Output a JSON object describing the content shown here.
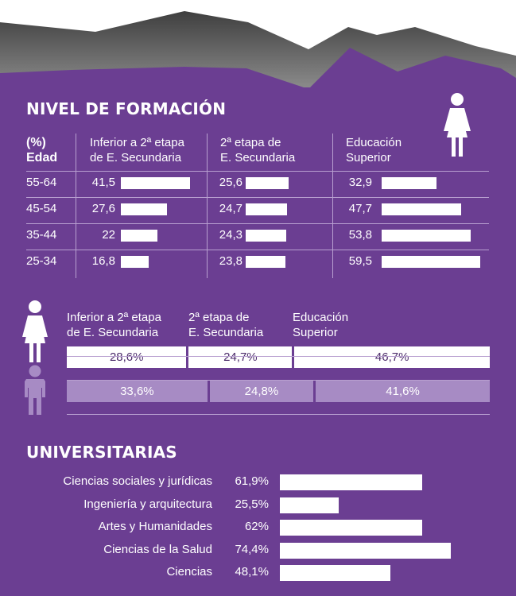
{
  "chart_data": [
    {
      "type": "bar",
      "title": "NIVEL DE FORMACIÓN",
      "header_col0": [
        "(%)",
        "Edad"
      ],
      "groups": [
        [
          "Inferior a 2ª etapa",
          "de E. Secundaria"
        ],
        [
          "2ª etapa de",
          "E. Secundaria"
        ],
        [
          "Educación",
          "Superior"
        ]
      ],
      "categories": [
        "55-64",
        "45-54",
        "35-44",
        "25-34"
      ],
      "series": [
        {
          "name": "Inferior a 2ª etapa de E. Secundaria",
          "values": [
            "41,5",
            "27,6",
            "22",
            "16,8"
          ]
        },
        {
          "name": "2ª etapa de E. Secundaria",
          "values": [
            "25,6",
            "24,7",
            "24,3",
            "23,8"
          ]
        },
        {
          "name": "Educación Superior",
          "values": [
            "32,9",
            "47,7",
            "53,8",
            "59,5"
          ]
        }
      ]
    },
    {
      "type": "bar",
      "stacked": true,
      "categories": [
        [
          "Inferior a 2ª etapa",
          "de E. Secundaria"
        ],
        [
          "2ª etapa de",
          "E. Secundaria"
        ],
        [
          "Educación",
          "Superior"
        ]
      ],
      "series": [
        {
          "name": "mujeres",
          "values": [
            "28,6%",
            "24,7%",
            "46,7%"
          ]
        },
        {
          "name": "hombres",
          "values": [
            "33,6%",
            "24,8%",
            "41,6%"
          ]
        }
      ]
    },
    {
      "type": "bar",
      "title": "UNIVERSITARIAS",
      "categories": [
        "Ciencias sociales y jurídicas",
        "Ingeniería y arquitectura",
        "Artes y Humanidades",
        "Ciencias de la Salud",
        "Ciencias"
      ],
      "values": [
        "61,9%",
        "25,5%",
        "62%",
        "74,4%",
        "48,1%"
      ]
    }
  ],
  "colors": {
    "background": "#6b3e92",
    "top_band": "#5e5e5e",
    "bar": "#ffffff",
    "light_bar": "#a78bc4",
    "grid": "#b89fd0"
  },
  "icons": [
    "woman-icon",
    "man-icon"
  ]
}
